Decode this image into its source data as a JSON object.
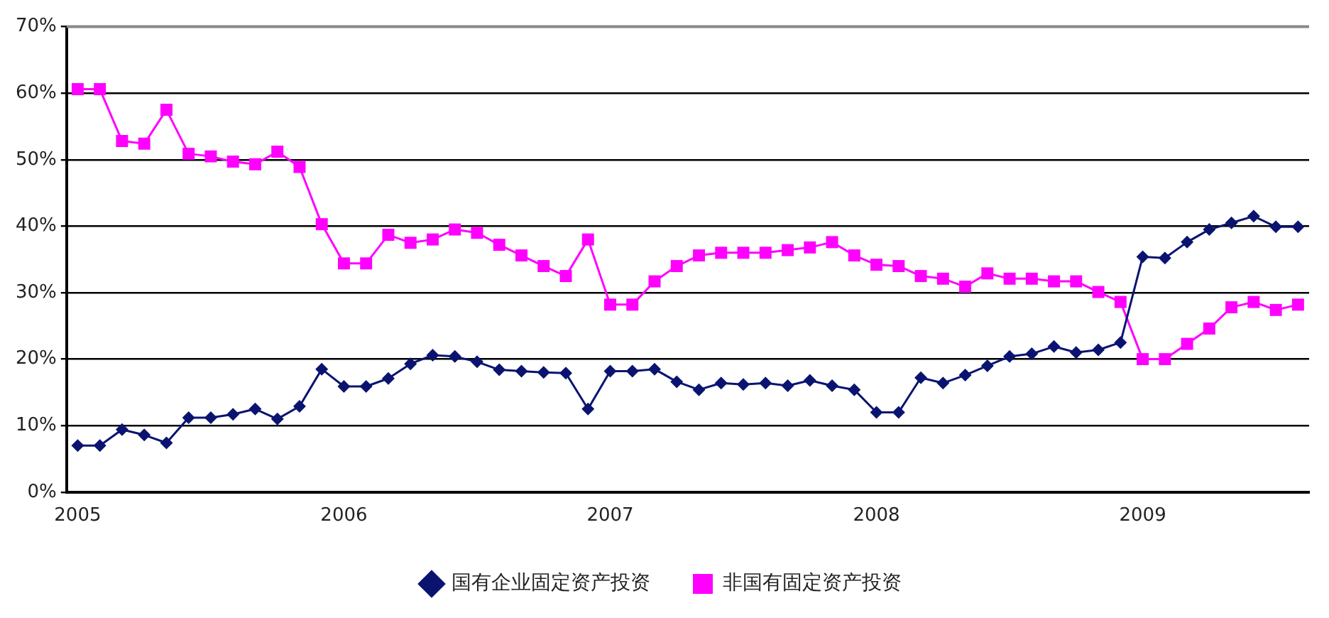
{
  "chart_data": {
    "type": "line",
    "categories": [
      "2005",
      null,
      null,
      null,
      null,
      null,
      null,
      null,
      null,
      null,
      null,
      null,
      "2006",
      null,
      null,
      null,
      null,
      null,
      null,
      null,
      null,
      null,
      null,
      null,
      "2007",
      null,
      null,
      null,
      null,
      null,
      null,
      null,
      null,
      null,
      null,
      null,
      "2008",
      null,
      null,
      null,
      null,
      null,
      null,
      null,
      null,
      null,
      null,
      null,
      "2009",
      null,
      null,
      null,
      null,
      null,
      null,
      null
    ],
    "series": [
      {
        "name": "国有企业固定资产投资",
        "color": "#0a1470",
        "marker": "diamond",
        "values": [
          7.0,
          7.0,
          9.4,
          8.6,
          7.4,
          11.2,
          11.2,
          11.7,
          12.5,
          11.0,
          12.9,
          18.5,
          15.9,
          15.9,
          17.1,
          19.3,
          20.6,
          20.4,
          19.6,
          18.4,
          18.2,
          18.0,
          17.9,
          12.5,
          18.2,
          18.2,
          18.5,
          16.6,
          15.4,
          16.4,
          16.2,
          16.4,
          16.0,
          16.8,
          16.0,
          15.4,
          12.0,
          12.0,
          17.2,
          16.4,
          17.6,
          19.0,
          20.4,
          20.8,
          21.9,
          21.0,
          21.4,
          22.5,
          35.4,
          35.2,
          37.6,
          39.5,
          40.5,
          41.5,
          39.9,
          39.9
        ]
      },
      {
        "name": "非国有固定资产投资",
        "color": "#ff00ff",
        "marker": "square",
        "values": [
          60.6,
          60.6,
          52.8,
          52.4,
          57.5,
          50.9,
          50.5,
          49.7,
          49.3,
          51.2,
          48.9,
          40.3,
          34.4,
          34.4,
          38.7,
          37.5,
          38.0,
          39.5,
          39.0,
          37.2,
          35.6,
          34.0,
          32.5,
          38.0,
          28.2,
          28.2,
          31.7,
          34.0,
          35.6,
          36.0,
          36.0,
          36.0,
          36.4,
          36.8,
          37.6,
          35.6,
          34.2,
          34.0,
          32.5,
          32.1,
          30.9,
          32.9,
          32.1,
          32.1,
          31.7,
          31.7,
          30.1,
          28.6,
          20.0,
          20.0,
          22.3,
          24.6,
          27.8,
          28.6,
          27.4,
          28.2
        ]
      }
    ],
    "ylim": [
      0,
      70
    ],
    "yticks": [
      {
        "value": 0,
        "label": "0%"
      },
      {
        "value": 10,
        "label": "10%"
      },
      {
        "value": 20,
        "label": "20%"
      },
      {
        "value": 30,
        "label": "30%"
      },
      {
        "value": 40,
        "label": "40%"
      },
      {
        "value": 50,
        "label": "50%"
      },
      {
        "value": 60,
        "label": "60%"
      },
      {
        "value": 70,
        "label": "70%"
      }
    ],
    "grid": "y",
    "legend": "bottom",
    "line_style": "solid"
  }
}
